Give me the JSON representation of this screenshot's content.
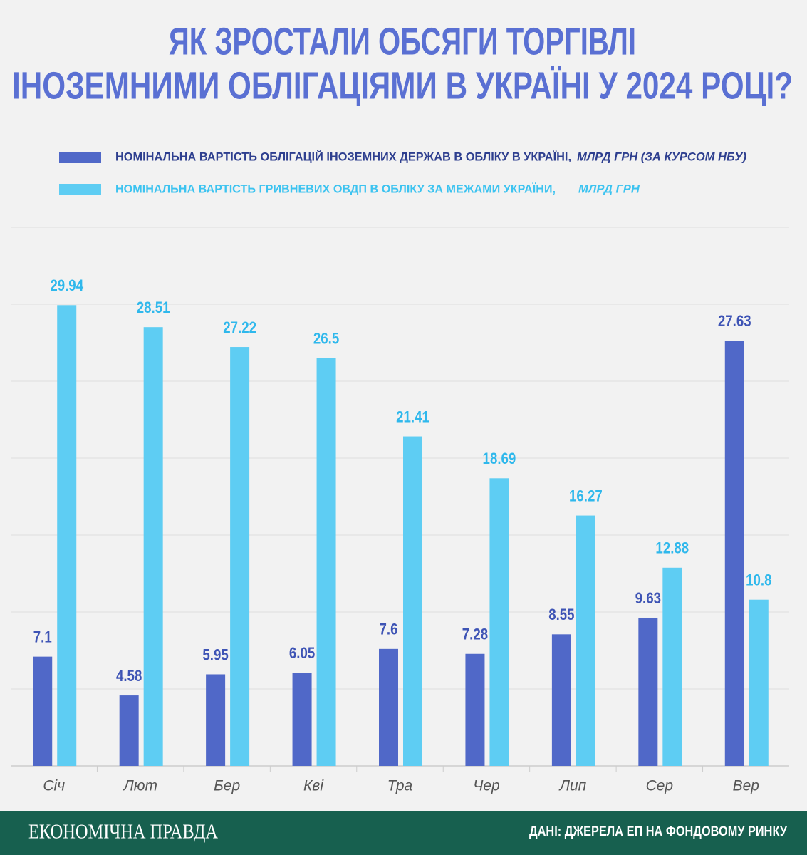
{
  "chart_data": {
    "type": "bar",
    "title": [
      "ЯК ЗРОСТАЛИ ОБСЯГИ ТОРГІВЛІ",
      "ІНОЗЕМНИМИ ОБЛІГАЦІЯМИ В УКРАЇНІ У 2024 РОЦІ?"
    ],
    "categories": [
      "Січ",
      "Лют",
      "Бер",
      "Кві",
      "Тра",
      "Чер",
      "Лип",
      "Сер",
      "Вер"
    ],
    "series": [
      {
        "name": "НОМІНАЛЬНА ВАРТІСТЬ ОБЛІГАЦІЙ ІНОЗЕМНИХ ДЕРЖАВ В ОБЛІКУ В УКРАЇНІ,",
        "unit": "МЛРД ГРН (ЗА КУРСОМ НБУ)",
        "color": "#5068c8",
        "values": [
          7.1,
          4.58,
          5.95,
          6.05,
          7.6,
          7.28,
          8.55,
          9.63,
          27.63
        ]
      },
      {
        "name": "НОМІНАЛЬНА ВАРТІСТЬ ГРИВНЕВИХ ОВДП В ОБЛІКУ ЗА МЕЖАМИ УКРАЇНИ,",
        "unit": "МЛРД ГРН",
        "color": "#5ecdf3",
        "values": [
          29.94,
          28.51,
          27.22,
          26.5,
          21.41,
          18.69,
          16.27,
          12.88,
          10.8
        ]
      }
    ],
    "ylim": [
      0,
      35
    ],
    "yticks": [
      0,
      5,
      10,
      15,
      20,
      25,
      30,
      35
    ],
    "grid": true,
    "brand": "ЕКОНОМІЧНА ПРАВДА",
    "source": "ДАНІ: ДЖЕРЕЛА ЕП НА ФОНДОВОМУ РИНКУ"
  }
}
